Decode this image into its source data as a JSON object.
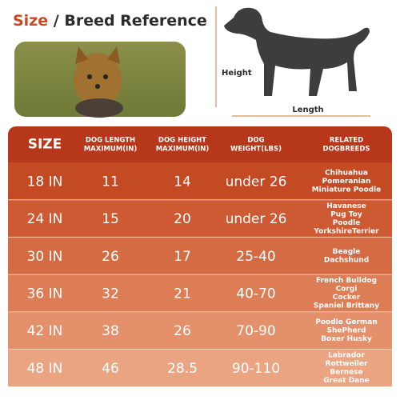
{
  "header": {
    "title_accent": "Size",
    "title_rest": "/ Breed Reference"
  },
  "diagram": {
    "height_label": "Height",
    "length_label": "Length"
  },
  "table": {
    "columns": [
      [
        "SIZE"
      ],
      [
        "DOG LENGTH",
        "MAXIMUM(IN)"
      ],
      [
        "DOG HEIGHT",
        "MAXIMUM(IN)"
      ],
      [
        "DOG",
        "WEIGHT(LBS)"
      ],
      [
        "RELATED",
        "DOGBREEDS"
      ]
    ],
    "rows": [
      [
        "18 IN",
        "11",
        "14",
        "under 26",
        [
          "Chihuahua",
          "Pomeranian",
          "Miniature Poodle"
        ]
      ],
      [
        "24 IN",
        "15",
        "20",
        "under 26",
        [
          "Havanese",
          "Pug Toy",
          "Poodle",
          "YorkshireTerrier"
        ]
      ],
      [
        "30 IN",
        "26",
        "17",
        "25-40",
        [
          "Beagle",
          "Dachshund"
        ]
      ],
      [
        "36 IN",
        "32",
        "21",
        "40-70",
        [
          "French Bulldog",
          "Corgi",
          "Cocker",
          "Spaniel Brittany"
        ]
      ],
      [
        "42 IN",
        "38",
        "26",
        "70-90",
        [
          "Poodle German",
          "ShePherd",
          "Boxer Husky"
        ]
      ],
      [
        "48 IN",
        "46",
        "28.5",
        "90-110",
        [
          "Labrador",
          "Rottweiler",
          "Bernese",
          "Great Dane"
        ]
      ]
    ]
  }
}
